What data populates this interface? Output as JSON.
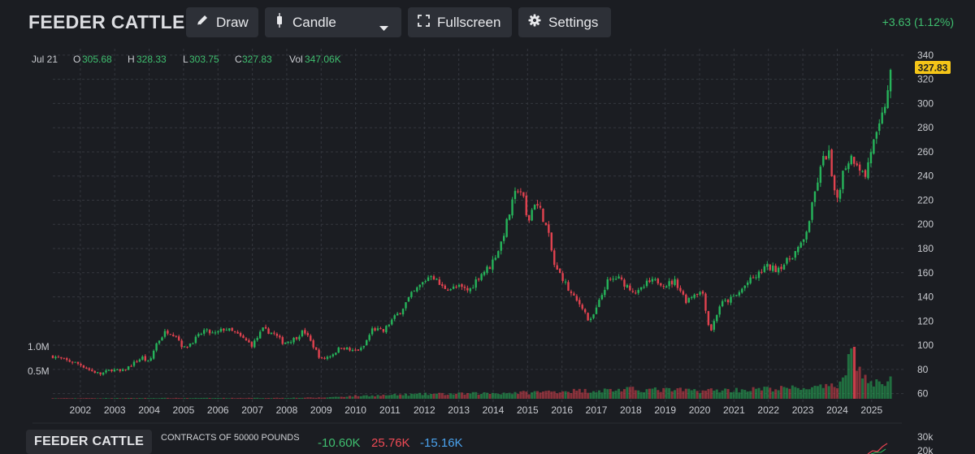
{
  "header": {
    "title": "FEEDER CATTLE",
    "draw_label": "Draw",
    "chart_type_label": "Candle",
    "fullscreen_label": "Fullscreen",
    "settings_label": "Settings",
    "change": "+3.63 (1.12%)"
  },
  "ohlc_bar": {
    "date": "Jul 21",
    "o_label": "O",
    "o_value": "305.68",
    "h_label": "H",
    "h_value": "328.33",
    "l_label": "L",
    "l_value": "303.75",
    "c_label": "C",
    "c_value": "327.83",
    "vol_label": "Vol",
    "vol_value": "347.06K"
  },
  "price_badge": "327.83",
  "volume_axis": {
    "labels": [
      "1.0M",
      "0.5M"
    ],
    "values": [
      1000000,
      500000
    ]
  },
  "bottom": {
    "title": "FEEDER CATTLE",
    "subtitle": "CONTRACTS OF 50000 POUNDS",
    "cot_values": [
      "-10.60K",
      "25.76K",
      "-15.16K"
    ],
    "cot_colors": [
      "#3fbf6f",
      "#ef4a55",
      "#4aa3ee"
    ],
    "axis_labels": [
      "30k",
      "20k"
    ]
  },
  "colors": {
    "up": "#26b35a",
    "down": "#e0424f",
    "background": "#1b1d22",
    "badge": "#f5c518"
  },
  "icons": [
    "pencil-icon",
    "candle-icon",
    "chevron-down-icon",
    "fullscreen-icon",
    "gear-icon"
  ],
  "chart_data": {
    "type": "candlestick",
    "title": "FEEDER CATTLE",
    "y_ticks": [
      60,
      80,
      100,
      120,
      140,
      160,
      180,
      200,
      220,
      240,
      260,
      280,
      300,
      320,
      340
    ],
    "ylim": [
      53,
      348
    ],
    "x_ticks": [
      "2002",
      "2003",
      "2004",
      "2005",
      "2006",
      "2007",
      "2008",
      "2009",
      "2010",
      "2011",
      "2012",
      "2013",
      "2014",
      "2015",
      "2016",
      "2017",
      "2018",
      "2019",
      "2020",
      "2021",
      "2022",
      "2023",
      "2024",
      "2025"
    ],
    "xlim": [
      2001.2,
      2025.95
    ],
    "grid": true,
    "close_series": [
      [
        2001.2,
        91
      ],
      [
        2001.5,
        88
      ],
      [
        2001.8,
        86
      ],
      [
        2002.0,
        84
      ],
      [
        2002.3,
        79
      ],
      [
        2002.6,
        76
      ],
      [
        2002.9,
        80
      ],
      [
        2003.2,
        78
      ],
      [
        2003.5,
        84
      ],
      [
        2003.8,
        90
      ],
      [
        2004.0,
        85
      ],
      [
        2004.2,
        101
      ],
      [
        2004.5,
        112
      ],
      [
        2004.8,
        108
      ],
      [
        2005.0,
        97
      ],
      [
        2005.3,
        104
      ],
      [
        2005.6,
        112
      ],
      [
        2005.9,
        109
      ],
      [
        2006.2,
        114
      ],
      [
        2006.5,
        110
      ],
      [
        2006.8,
        104
      ],
      [
        2007.0,
        100
      ],
      [
        2007.3,
        113
      ],
      [
        2007.6,
        110
      ],
      [
        2007.9,
        102
      ],
      [
        2008.2,
        105
      ],
      [
        2008.5,
        112
      ],
      [
        2008.8,
        98
      ],
      [
        2009.0,
        88
      ],
      [
        2009.3,
        92
      ],
      [
        2009.6,
        99
      ],
      [
        2009.9,
        95
      ],
      [
        2010.2,
        97
      ],
      [
        2010.5,
        114
      ],
      [
        2010.8,
        111
      ],
      [
        2011.0,
        119
      ],
      [
        2011.3,
        128
      ],
      [
        2011.6,
        141
      ],
      [
        2011.9,
        150
      ],
      [
        2012.2,
        159
      ],
      [
        2012.5,
        148
      ],
      [
        2012.8,
        147
      ],
      [
        2013.0,
        148
      ],
      [
        2013.3,
        145
      ],
      [
        2013.6,
        158
      ],
      [
        2013.9,
        165
      ],
      [
        2014.2,
        182
      ],
      [
        2014.5,
        212
      ],
      [
        2014.7,
        230
      ],
      [
        2014.85,
        226
      ],
      [
        2015.0,
        200
      ],
      [
        2015.2,
        219
      ],
      [
        2015.4,
        210
      ],
      [
        2015.6,
        192
      ],
      [
        2015.8,
        163
      ],
      [
        2016.0,
        157
      ],
      [
        2016.2,
        145
      ],
      [
        2016.4,
        137
      ],
      [
        2016.6,
        132
      ],
      [
        2016.8,
        118
      ],
      [
        2017.0,
        130
      ],
      [
        2017.3,
        152
      ],
      [
        2017.6,
        156
      ],
      [
        2017.9,
        149
      ],
      [
        2018.2,
        143
      ],
      [
        2018.5,
        152
      ],
      [
        2018.8,
        153
      ],
      [
        2019.0,
        150
      ],
      [
        2019.3,
        153
      ],
      [
        2019.6,
        137
      ],
      [
        2019.9,
        144
      ],
      [
        2020.1,
        143
      ],
      [
        2020.3,
        110
      ],
      [
        2020.6,
        134
      ],
      [
        2020.9,
        138
      ],
      [
        2021.1,
        142
      ],
      [
        2021.4,
        152
      ],
      [
        2021.7,
        158
      ],
      [
        2021.9,
        165
      ],
      [
        2022.2,
        163
      ],
      [
        2022.5,
        168
      ],
      [
        2022.8,
        178
      ],
      [
        2023.0,
        184
      ],
      [
        2023.2,
        205
      ],
      [
        2023.4,
        233
      ],
      [
        2023.6,
        254
      ],
      [
        2023.75,
        260
      ],
      [
        2023.9,
        225
      ],
      [
        2024.0,
        222
      ],
      [
        2024.2,
        247
      ],
      [
        2024.4,
        256
      ],
      [
        2024.6,
        251
      ],
      [
        2024.8,
        238
      ],
      [
        2025.0,
        264
      ],
      [
        2025.2,
        276
      ],
      [
        2025.4,
        301
      ],
      [
        2025.55,
        327.83
      ]
    ],
    "volume_series": [
      [
        2001.2,
        10000
      ],
      [
        2004.0,
        14000
      ],
      [
        2007.0,
        15000
      ],
      [
        2009.0,
        22000
      ],
      [
        2010.0,
        55000
      ],
      [
        2011.0,
        70000
      ],
      [
        2012.0,
        90000
      ],
      [
        2013.0,
        95000
      ],
      [
        2014.0,
        110000
      ],
      [
        2015.0,
        120000
      ],
      [
        2016.0,
        150000
      ],
      [
        2017.0,
        160000
      ],
      [
        2018.0,
        180000
      ],
      [
        2019.0,
        170000
      ],
      [
        2020.0,
        160000
      ],
      [
        2021.0,
        170000
      ],
      [
        2022.0,
        190000
      ],
      [
        2023.0,
        210000
      ],
      [
        2023.7,
        220000
      ],
      [
        2024.0,
        240000
      ],
      [
        2024.5,
        1030000
      ],
      [
        2024.6,
        580000
      ],
      [
        2025.0,
        270000
      ],
      [
        2025.3,
        320000
      ],
      [
        2025.55,
        347060
      ]
    ],
    "last_close": 327.83
  }
}
